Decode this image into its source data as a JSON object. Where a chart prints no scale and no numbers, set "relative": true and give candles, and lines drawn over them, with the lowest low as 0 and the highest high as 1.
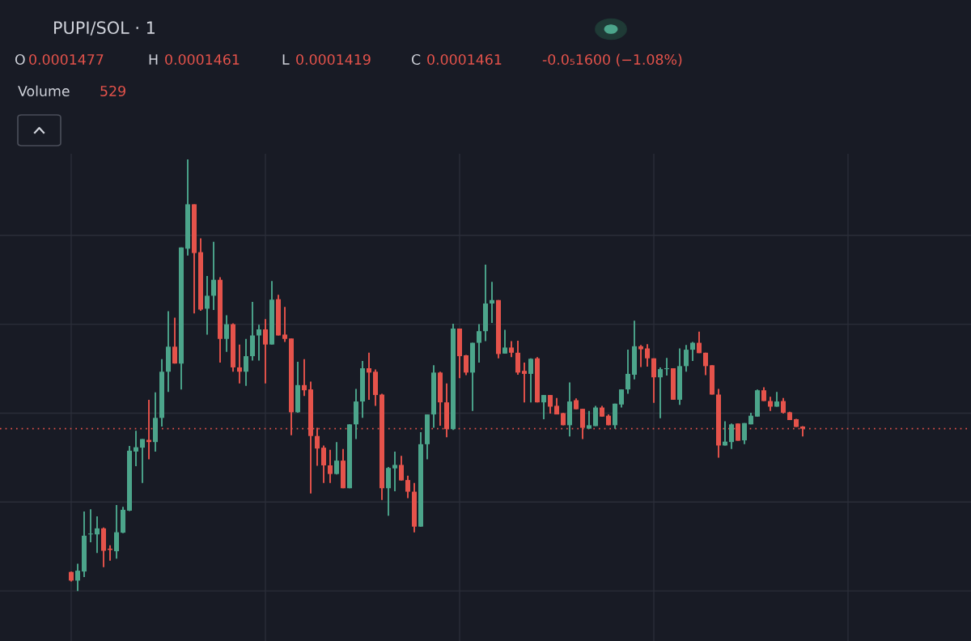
{
  "chart_data": {
    "type": "candlestick",
    "title": "PUPI/SOL · 1",
    "annotations": [
      "O",
      "0.0001477",
      "H",
      "0.0001461",
      "L",
      "0.0001419",
      "C",
      "0.0001461",
      "-0.0₅1600 (−1.08%)",
      "Volume",
      "529"
    ],
    "relative": true,
    "grid": true,
    "categories": [
      null,
      null,
      null,
      null,
      null,
      null,
      null,
      null,
      null,
      null,
      null,
      null,
      null,
      null,
      null,
      null,
      null,
      null,
      null,
      null,
      null,
      null,
      null,
      null,
      null,
      null,
      null,
      null,
      null,
      null,
      null,
      null,
      null,
      null,
      null,
      null,
      null,
      null,
      null,
      null,
      null,
      null,
      null,
      null,
      null,
      null,
      null,
      null,
      null,
      null,
      null,
      null,
      null,
      null,
      null,
      null,
      null,
      null,
      null,
      null,
      null,
      null,
      null,
      null,
      null,
      null,
      null,
      null,
      null,
      null,
      null,
      null,
      null,
      null,
      null,
      null,
      null,
      null,
      null,
      null,
      null,
      null,
      null,
      null,
      null,
      null,
      null,
      null,
      null,
      null,
      null,
      null,
      null,
      null,
      null,
      null,
      null,
      null,
      null,
      null,
      null,
      null,
      null,
      null,
      null,
      null,
      null,
      null,
      null,
      null,
      null,
      null,
      null,
      null
    ],
    "ohlc": [
      [
        0.044,
        0.045,
        0.022,
        0.024
      ],
      [
        0.024,
        0.063,
        0.0,
        0.047
      ],
      [
        0.045,
        0.184,
        0.032,
        0.128
      ],
      [
        0.131,
        0.189,
        0.113,
        0.133
      ],
      [
        0.131,
        0.173,
        0.088,
        0.145
      ],
      [
        0.145,
        0.147,
        0.055,
        0.093
      ],
      [
        0.098,
        0.106,
        0.07,
        0.095
      ],
      [
        0.092,
        0.199,
        0.075,
        0.136
      ],
      [
        0.135,
        0.195,
        0.134,
        0.188
      ],
      [
        0.186,
        0.336,
        0.185,
        0.325
      ],
      [
        0.323,
        0.371,
        0.289,
        0.333
      ],
      [
        0.332,
        0.352,
        0.25,
        0.352
      ],
      [
        0.35,
        0.443,
        0.305,
        0.345
      ],
      [
        0.345,
        0.46,
        0.323,
        0.401
      ],
      [
        0.401,
        0.537,
        0.381,
        0.508
      ],
      [
        0.508,
        0.648,
        0.461,
        0.566
      ],
      [
        0.566,
        0.633,
        0.527,
        0.527
      ],
      [
        0.527,
        0.796,
        0.467,
        0.796
      ],
      [
        0.793,
        1.0,
        0.777,
        0.896
      ],
      [
        0.896,
        0.896,
        0.643,
        0.783
      ],
      [
        0.785,
        0.817,
        0.649,
        0.652
      ],
      [
        0.654,
        0.73,
        0.594,
        0.684
      ],
      [
        0.684,
        0.809,
        0.651,
        0.721
      ],
      [
        0.721,
        0.727,
        0.529,
        0.584
      ],
      [
        0.584,
        0.639,
        0.554,
        0.618
      ],
      [
        0.618,
        0.62,
        0.508,
        0.518
      ],
      [
        0.518,
        0.571,
        0.481,
        0.508
      ],
      [
        0.508,
        0.584,
        0.475,
        0.544
      ],
      [
        0.544,
        0.67,
        0.534,
        0.592
      ],
      [
        0.592,
        0.617,
        0.534,
        0.606
      ],
      [
        0.606,
        0.63,
        0.481,
        0.571
      ],
      [
        0.571,
        0.718,
        0.571,
        0.675
      ],
      [
        0.676,
        0.686,
        0.592,
        0.592
      ],
      [
        0.594,
        0.658,
        0.577,
        0.584
      ],
      [
        0.585,
        0.585,
        0.361,
        0.414
      ],
      [
        0.414,
        0.531,
        0.413,
        0.477
      ],
      [
        0.477,
        0.537,
        0.452,
        0.465
      ],
      [
        0.467,
        0.485,
        0.226,
        0.359
      ],
      [
        0.359,
        0.378,
        0.29,
        0.33
      ],
      [
        0.332,
        0.337,
        0.25,
        0.291
      ],
      [
        0.291,
        0.327,
        0.25,
        0.271
      ],
      [
        0.271,
        0.345,
        0.27,
        0.302
      ],
      [
        0.302,
        0.329,
        0.238,
        0.238
      ],
      [
        0.238,
        0.386,
        0.238,
        0.386
      ],
      [
        0.386,
        0.468,
        0.352,
        0.439
      ],
      [
        0.439,
        0.533,
        0.401,
        0.516
      ],
      [
        0.516,
        0.552,
        0.443,
        0.506
      ],
      [
        0.508,
        0.513,
        0.429,
        0.454
      ],
      [
        0.455,
        0.457,
        0.211,
        0.238
      ],
      [
        0.238,
        0.287,
        0.174,
        0.285
      ],
      [
        0.284,
        0.323,
        0.231,
        0.292
      ],
      [
        0.292,
        0.313,
        0.256,
        0.256
      ],
      [
        0.257,
        0.267,
        0.215,
        0.23
      ],
      [
        0.23,
        0.25,
        0.136,
        0.149
      ],
      [
        0.149,
        0.368,
        0.149,
        0.34
      ],
      [
        0.34,
        0.409,
        0.305,
        0.409
      ],
      [
        0.409,
        0.523,
        0.378,
        0.506
      ],
      [
        0.506,
        0.508,
        0.383,
        0.437
      ],
      [
        0.437,
        0.481,
        0.356,
        0.375
      ],
      [
        0.375,
        0.619,
        0.373,
        0.608
      ],
      [
        0.608,
        0.608,
        0.493,
        0.544
      ],
      [
        0.546,
        0.547,
        0.5,
        0.506
      ],
      [
        0.506,
        0.575,
        0.417,
        0.575
      ],
      [
        0.575,
        0.618,
        0.529,
        0.602
      ],
      [
        0.602,
        0.756,
        0.579,
        0.666
      ],
      [
        0.666,
        0.716,
        0.621,
        0.674
      ],
      [
        0.674,
        0.674,
        0.539,
        0.549
      ],
      [
        0.55,
        0.605,
        0.55,
        0.564
      ],
      [
        0.564,
        0.579,
        0.542,
        0.552
      ],
      [
        0.552,
        0.58,
        0.501,
        0.506
      ],
      [
        0.51,
        0.529,
        0.437,
        0.503
      ],
      [
        0.503,
        0.539,
        0.437,
        0.538
      ],
      [
        0.539,
        0.542,
        0.437,
        0.437
      ],
      [
        0.437,
        0.454,
        0.398,
        0.454
      ],
      [
        0.454,
        0.454,
        0.411,
        0.427
      ],
      [
        0.429,
        0.447,
        0.409,
        0.409
      ],
      [
        0.412,
        0.413,
        0.384,
        0.384
      ],
      [
        0.384,
        0.483,
        0.358,
        0.439
      ],
      [
        0.442,
        0.446,
        0.421,
        0.421
      ],
      [
        0.422,
        0.422,
        0.352,
        0.378
      ],
      [
        0.376,
        0.417,
        0.376,
        0.384
      ],
      [
        0.382,
        0.429,
        0.382,
        0.425
      ],
      [
        0.425,
        0.429,
        0.404,
        0.404
      ],
      [
        0.406,
        0.409,
        0.384,
        0.384
      ],
      [
        0.384,
        0.434,
        0.376,
        0.434
      ],
      [
        0.432,
        0.467,
        0.425,
        0.467
      ],
      [
        0.467,
        0.559,
        0.457,
        0.503
      ],
      [
        0.501,
        0.626,
        0.49,
        0.567
      ],
      [
        0.567,
        0.57,
        0.519,
        0.56
      ],
      [
        0.562,
        0.572,
        0.52,
        0.539
      ],
      [
        0.539,
        0.539,
        0.436,
        0.495
      ],
      [
        0.495,
        0.518,
        0.4,
        0.514
      ],
      [
        0.514,
        0.54,
        0.499,
        0.516
      ],
      [
        0.516,
        0.516,
        0.443,
        0.443
      ],
      [
        0.443,
        0.562,
        0.431,
        0.521
      ],
      [
        0.521,
        0.57,
        0.508,
        0.559
      ],
      [
        0.559,
        0.577,
        0.533,
        0.575
      ],
      [
        0.575,
        0.601,
        0.551,
        0.551
      ],
      [
        0.552,
        0.552,
        0.5,
        0.521
      ],
      [
        0.523,
        0.523,
        0.455,
        0.455
      ],
      [
        0.455,
        0.468,
        0.309,
        0.337
      ],
      [
        0.337,
        0.393,
        0.337,
        0.346
      ],
      [
        0.345,
        0.388,
        0.329,
        0.386
      ],
      [
        0.388,
        0.388,
        0.348,
        0.348
      ],
      [
        0.349,
        0.389,
        0.34,
        0.389
      ],
      [
        0.386,
        0.413,
        0.386,
        0.406
      ],
      [
        0.404,
        0.467,
        0.404,
        0.465
      ],
      [
        0.465,
        0.472,
        0.44,
        0.44
      ],
      [
        0.44,
        0.45,
        0.417,
        0.427
      ],
      [
        0.427,
        0.461,
        0.427,
        0.439
      ],
      [
        0.44,
        0.447,
        0.411,
        0.413
      ],
      [
        0.414,
        0.415,
        0.396,
        0.396
      ],
      [
        0.398,
        0.399,
        0.38,
        0.38
      ],
      [
        0.381,
        0.382,
        0.358,
        0.376
      ]
    ],
    "ref_lines": [
      {
        "axis": "y",
        "value": 0.376,
        "color": "#e5534b",
        "line_style": "dotted"
      }
    ]
  }
}
